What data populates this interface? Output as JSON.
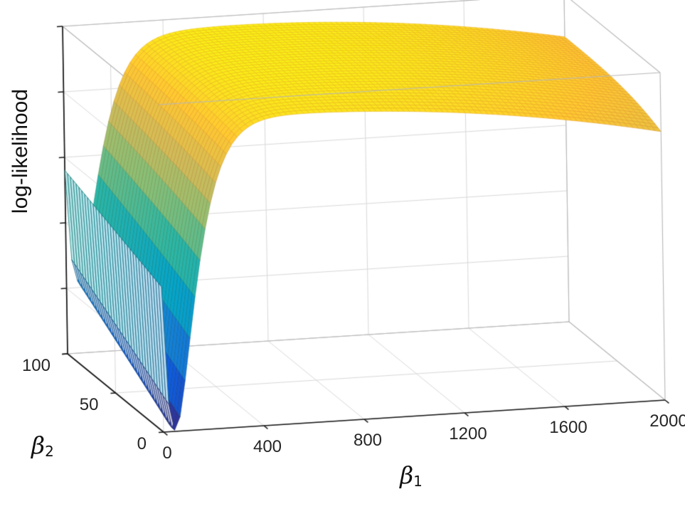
{
  "figure": {
    "background": "#ffffff"
  },
  "axes_style": {
    "axis_color": "#151515",
    "box_edge_color": "#b8b8b8",
    "grid_color": "#d9d9d9",
    "tick_label_color": "#262626"
  },
  "chart_data": {
    "type": "surface",
    "title": "",
    "xlabel": {
      "base": "β",
      "sub": "1"
    },
    "ylabel": {
      "base": "β",
      "sub": "2"
    },
    "zlabel": "log-likelihood",
    "x_range": [
      0,
      2000
    ],
    "y_range": [
      0,
      100
    ],
    "x_ticks": [
      "0",
      "400",
      "800",
      "1200",
      "1600",
      "2000"
    ],
    "x_tick_values": [
      0,
      400,
      800,
      1200,
      1600,
      2000
    ],
    "y_ticks": [
      "0",
      "50",
      "100"
    ],
    "y_tick_values": [
      0,
      50,
      100
    ],
    "z_tick_count": 6,
    "z_axis_tick_labels_visible": false,
    "grid": true,
    "legend": false,
    "colormap_name": "parula",
    "colormap": [
      "#352a87",
      "#0f5cdd",
      "#1481d6",
      "#06a4ca",
      "#2eb7a4",
      "#87bf77",
      "#d1bb59",
      "#fec832",
      "#f9fb0e"
    ],
    "surface_model": {
      "desc": "log-likelihood surface: high yellow plateau over most of the domain, slight decline toward beta1=2000, deep narrow blue-purple valley near beta1~45 (deepest at beta2=0), short green ridge crest along beta1=0",
      "plateau_peak_z": 0.97,
      "plateau_curv": 0.1,
      "plateau_center_x": 650,
      "plateau_halfwidth": 1350,
      "front_droop": 0.05,
      "valley_offset": 15,
      "valley_scale": 60,
      "valley_depth_front": 0.95,
      "valley_depth_slope": 0.22,
      "grid_nx": 90,
      "grid_ny": 34
    },
    "z_sample_grid": {
      "note": "z normalized to axis box height 0..1 (z tick values not labeled in figure)",
      "x": [
        0,
        50,
        100,
        200,
        400,
        800,
        1200,
        1600,
        2000
      ],
      "y": [
        0,
        25,
        50,
        75,
        100
      ],
      "z_normalized": [
        [
          0.44,
          0.0,
          0.22,
          0.69,
          0.93,
          0.94,
          0.92,
          0.88,
          0.82
        ],
        [
          0.47,
          0.06,
          0.26,
          0.71,
          0.94,
          0.96,
          0.94,
          0.9,
          0.84
        ],
        [
          0.5,
          0.11,
          0.31,
          0.73,
          0.95,
          0.96,
          0.95,
          0.92,
          0.86
        ],
        [
          0.53,
          0.17,
          0.35,
          0.75,
          0.95,
          0.97,
          0.95,
          0.92,
          0.86
        ],
        [
          0.56,
          0.22,
          0.39,
          0.76,
          0.95,
          0.97,
          0.95,
          0.92,
          0.87
        ]
      ]
    }
  }
}
